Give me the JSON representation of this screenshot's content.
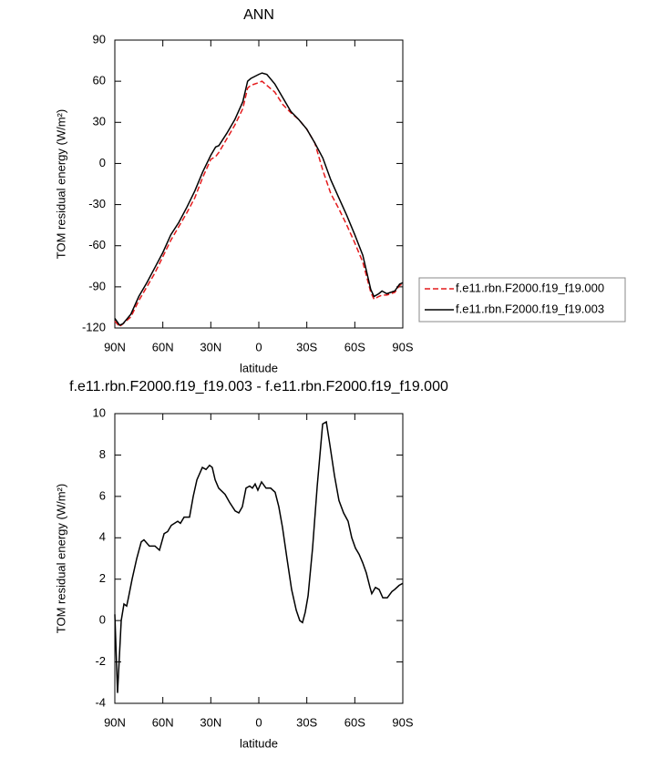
{
  "chart_data": [
    {
      "type": "line",
      "title": "ANN",
      "x_label": "latitude",
      "y_label": "TOM residual energy (W/m²)",
      "x": [
        90,
        87,
        85,
        80,
        75,
        70,
        65,
        60,
        55,
        50,
        45,
        40,
        35,
        30,
        27,
        25,
        20,
        15,
        10,
        7,
        5,
        0,
        -2,
        -5,
        -10,
        -15,
        -20,
        -25,
        -30,
        -35,
        -40,
        -45,
        -50,
        -55,
        -60,
        -65,
        -70,
        -72,
        -75,
        -77,
        -80,
        -85,
        -88,
        -90
      ],
      "series": [
        {
          "name": "f.e11.rbn.F2000.f19_f19.000",
          "color": "#e41a1c",
          "line_style": "dashed",
          "values": [
            -115,
            -119,
            -117,
            -112,
            -100,
            -90,
            -80,
            -68,
            -56,
            -46,
            -36,
            -25,
            -10,
            3,
            5,
            8,
            18,
            28,
            40,
            55,
            57,
            59,
            60,
            57,
            52,
            43,
            37,
            32,
            25,
            15,
            -5,
            -22,
            -33,
            -45,
            -58,
            -72,
            -94,
            -99,
            -97,
            -96,
            -96,
            -94,
            -89,
            -88
          ]
        },
        {
          "name": "f.e11.rbn.F2000.f19_f19.003",
          "color": "#000000",
          "line_style": "solid",
          "values": [
            -113,
            -118,
            -117,
            -110,
            -97,
            -87,
            -76,
            -65,
            -52,
            -43,
            -32,
            -20,
            -6,
            6,
            12,
            13,
            22,
            32,
            45,
            60,
            62,
            65,
            66,
            65,
            58,
            48,
            38,
            32,
            25,
            15,
            4,
            -12,
            -25,
            -38,
            -52,
            -67,
            -92,
            -97,
            -95,
            -93,
            -95,
            -93,
            -88,
            -87
          ]
        }
      ],
      "xlim": [
        90,
        -90
      ],
      "xticks": [
        {
          "value": 90,
          "label": "90N"
        },
        {
          "value": 60,
          "label": "60N"
        },
        {
          "value": 30,
          "label": "30N"
        },
        0,
        {
          "value": -30,
          "label": "30S"
        },
        {
          "value": -60,
          "label": "60S"
        },
        {
          "value": -90,
          "label": "90S"
        }
      ],
      "ylim": [
        -120,
        90
      ],
      "yticks": [
        90,
        60,
        30,
        0,
        -30,
        -60,
        -90,
        -120
      ],
      "legend": "right"
    },
    {
      "type": "line",
      "title": "f.e11.rbn.F2000.f19_f19.003 - f.e11.rbn.F2000.f19_f19.000",
      "x_label": "latitude",
      "y_label": "TOM residual energy (W/m²)",
      "x": [
        90,
        88.3,
        86,
        84.3,
        82.6,
        81.5,
        79.2,
        76.3,
        73.5,
        71.8,
        68.4,
        64.9,
        62.1,
        59.2,
        57,
        54.7,
        50.7,
        49,
        46.7,
        43.3,
        41,
        38.7,
        35.3,
        33,
        30.8,
        29.1,
        27.3,
        25.1,
        21.1,
        18.2,
        14.8,
        12.5,
        10.3,
        8,
        5.7,
        4,
        2.3,
        0.6,
        -1.7,
        -4.5,
        -7.4,
        -10.2,
        -12.5,
        -14.8,
        -17.6,
        -20.5,
        -23.4,
        -25.6,
        -27.3,
        -29,
        -30.8,
        -33.6,
        -36.5,
        -39.9,
        -42.2,
        -44.4,
        -47.3,
        -50.1,
        -53,
        -55.8,
        -58.1,
        -60.4,
        -62.7,
        -64.9,
        -67.2,
        -69.5,
        -70.6,
        -72.9,
        -75.2,
        -77.5,
        -80.3,
        -83.2,
        -84.9,
        -87.7,
        -90
      ],
      "series": [
        {
          "color": "#000000",
          "line_style": "solid",
          "values": [
            0.3,
            -3.5,
            0,
            0.8,
            0.7,
            1.1,
            2,
            3,
            3.8,
            3.9,
            3.6,
            3.6,
            3.4,
            4.2,
            4.3,
            4.6,
            4.8,
            4.7,
            5,
            5,
            6,
            6.8,
            7.4,
            7.3,
            7.5,
            7.4,
            6.8,
            6.4,
            6.1,
            5.7,
            5.3,
            5.2,
            5.5,
            6.4,
            6.5,
            6.4,
            6.6,
            6.3,
            6.7,
            6.4,
            6.4,
            6.2,
            5.5,
            4.5,
            3,
            1.5,
            0.5,
            0,
            -0.1,
            0.4,
            1.2,
            3.5,
            6.5,
            9.5,
            9.6,
            8.5,
            7,
            5.8,
            5.2,
            4.8,
            4,
            3.5,
            3.2,
            2.8,
            2.3,
            1.6,
            1.3,
            1.6,
            1.5,
            1.1,
            1.1,
            1.4,
            1.5,
            1.7,
            1.8
          ]
        }
      ],
      "xlim": [
        90,
        -90
      ],
      "xticks": [
        {
          "value": 90,
          "label": "90N"
        },
        {
          "value": 60,
          "label": "60N"
        },
        {
          "value": 30,
          "label": "30N"
        },
        0,
        {
          "value": -30,
          "label": "30S"
        },
        {
          "value": -60,
          "label": "60S"
        },
        {
          "value": -90,
          "label": "90S"
        }
      ],
      "ylim": [
        -4,
        10
      ],
      "yticks": [
        10,
        8,
        6,
        4,
        2,
        0,
        -2,
        -4
      ]
    }
  ]
}
